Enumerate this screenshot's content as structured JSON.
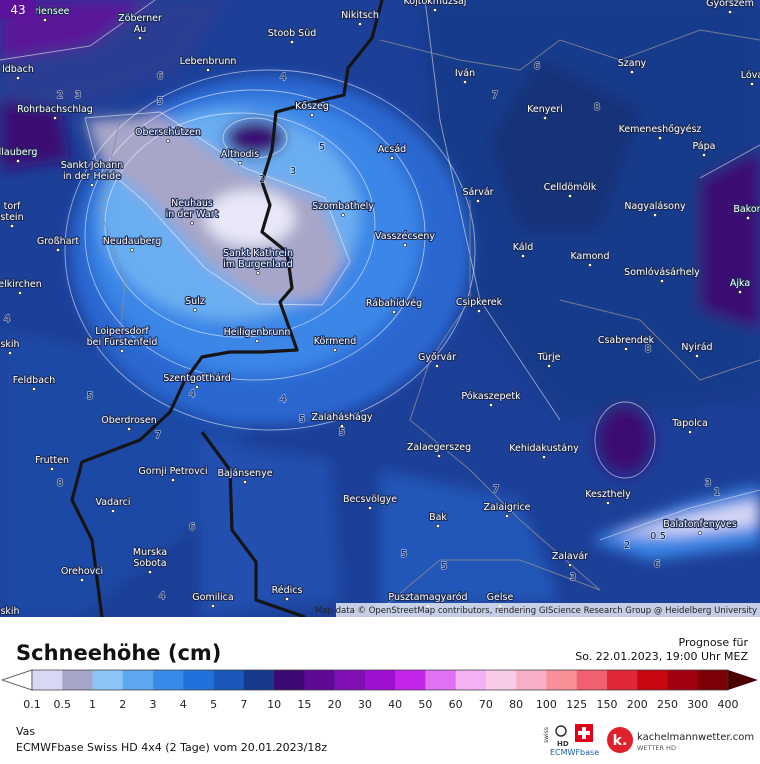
{
  "map": {
    "badge": "43",
    "places": [
      {
        "lines": [
          "Mariensee"
        ]
      },
      {
        "lines": [
          "Zöberner",
          "Au"
        ]
      },
      {
        "lines": [
          "Kojtokmuzsaj"
        ]
      },
      {
        "lines": [
          "Nikitsch"
        ]
      },
      {
        "lines": [
          "Győrszem"
        ]
      },
      {
        "lines": [
          "Stoob Süd"
        ]
      },
      {
        "lines": [
          "Lebenbrunn"
        ]
      },
      {
        "lines": [
          "Iván"
        ]
      },
      {
        "lines": [
          "Szany"
        ]
      },
      {
        "lines": [
          "Lóva"
        ]
      },
      {
        "lines": [
          "ldbach"
        ]
      },
      {
        "lines": [
          "Rohrbachschlag"
        ]
      },
      {
        "lines": [
          "Kőszeg"
        ]
      },
      {
        "lines": [
          "Kenyeri"
        ]
      },
      {
        "lines": [
          "Oberschützen"
        ]
      },
      {
        "lines": [
          "Kemeneshőgyész"
        ]
      },
      {
        "lines": [
          "llauberg"
        ]
      },
      {
        "lines": [
          "Althodis"
        ]
      },
      {
        "lines": [
          "Acsád"
        ]
      },
      {
        "lines": [
          "Pápa"
        ]
      },
      {
        "lines": [
          "Sankt Johann",
          "in der Heide"
        ]
      },
      {
        "lines": [
          "Sárvár"
        ]
      },
      {
        "lines": [
          "Celldömölk"
        ]
      },
      {
        "lines": [
          "Neuhaus",
          "in der Wart"
        ]
      },
      {
        "lines": [
          "Szombathely"
        ]
      },
      {
        "lines": [
          "Nagyalásony"
        ]
      },
      {
        "lines": [
          "Bakon"
        ]
      },
      {
        "lines": [
          "torf",
          "stein"
        ]
      },
      {
        "lines": [
          "Großhart"
        ]
      },
      {
        "lines": [
          "Neudauberg"
        ]
      },
      {
        "lines": [
          "Vasszécseny"
        ]
      },
      {
        "lines": [
          "Káld"
        ]
      },
      {
        "lines": [
          "Sankt Kathrein",
          "im Burgenland"
        ]
      },
      {
        "lines": [
          "Kamond"
        ]
      },
      {
        "lines": [
          "Somlóvásárhely"
        ]
      },
      {
        "lines": [
          "elkirchen"
        ]
      },
      {
        "lines": [
          "Ajka"
        ]
      },
      {
        "lines": [
          "Sulz"
        ]
      },
      {
        "lines": [
          "Rábahídvég"
        ]
      },
      {
        "lines": [
          "Csipkerek"
        ]
      },
      {
        "lines": [
          "Loipersdorf",
          "bei Fürstenfeld"
        ]
      },
      {
        "lines": [
          "Heiligenbrunn"
        ]
      },
      {
        "lines": [
          "Körmend"
        ]
      },
      {
        "lines": [
          "Csabrendek"
        ]
      },
      {
        "lines": [
          "Nyirád"
        ]
      },
      {
        "lines": [
          "skih"
        ]
      },
      {
        "lines": [
          "Feldbach"
        ]
      },
      {
        "lines": [
          "Szentgotthárd"
        ]
      },
      {
        "lines": [
          "Győrvár"
        ]
      },
      {
        "lines": [
          "Türje"
        ]
      },
      {
        "lines": [
          "Pókaszepetk"
        ]
      },
      {
        "lines": [
          "Oberdrosen"
        ]
      },
      {
        "lines": [
          "Zalaháshágy"
        ]
      },
      {
        "lines": [
          "Tapolca"
        ]
      },
      {
        "lines": [
          "Zalaegerszeg"
        ]
      },
      {
        "lines": [
          "Kehidakustány"
        ]
      },
      {
        "lines": [
          "Frutten"
        ]
      },
      {
        "lines": [
          "Gornji Petrovci"
        ]
      },
      {
        "lines": [
          "Bajánsenye"
        ]
      },
      {
        "lines": [
          "Keszthely"
        ]
      },
      {
        "lines": [
          "Vadarci"
        ]
      },
      {
        "lines": [
          "Becsvölgye"
        ]
      },
      {
        "lines": [
          "Zalaigrice"
        ]
      },
      {
        "lines": [
          "Balatonfenyves"
        ]
      },
      {
        "lines": [
          "Bak"
        ]
      },
      {
        "lines": [
          "Murska",
          "Sobota"
        ]
      },
      {
        "lines": [
          "Zalavár"
        ]
      },
      {
        "lines": [
          "Orehovci"
        ]
      },
      {
        "lines": [
          "Rédics"
        ]
      },
      {
        "lines": [
          "Pusztamagyaród"
        ]
      },
      {
        "lines": [
          "Gelse"
        ]
      },
      {
        "lines": [
          "Gomilica"
        ]
      },
      {
        "lines": [
          "skih"
        ]
      }
    ],
    "contour_labels": [
      "6",
      "2",
      "3",
      "5",
      "4",
      "6",
      "7",
      "8",
      "5",
      "2",
      "3",
      "4",
      "8",
      "5",
      "4",
      "4",
      "5",
      "5",
      "7",
      "8",
      "6",
      "7",
      "3",
      "1",
      "5",
      "5",
      "2",
      "0.5",
      "3",
      "6",
      "4"
    ],
    "attribution": "Map data © OpenStreetMap contributors, rendering GIScience Research Group @ Heidelberg University"
  },
  "legend": {
    "title": "Schneehöhe (cm)",
    "labels": [
      "0.1",
      "0.5",
      "1",
      "2",
      "3",
      "4",
      "5",
      "7",
      "10",
      "15",
      "20",
      "30",
      "40",
      "50",
      "60",
      "70",
      "80",
      "100",
      "125",
      "150",
      "200",
      "250",
      "300",
      "400"
    ],
    "colors": [
      "#d8d8f4",
      "#a8a6c8",
      "#8cc4f8",
      "#5ea8f2",
      "#3a8aea",
      "#2270dc",
      "#1a58ba",
      "#183a8c",
      "#3a0a72",
      "#5e0a94",
      "#7e10b4",
      "#a010d2",
      "#c224ea",
      "#e070f4",
      "#f2b2f4",
      "#f8cce8",
      "#f8b0c6",
      "#f89098",
      "#f06070",
      "#e02838",
      "#c80812",
      "#a00010",
      "#7c0008"
    ],
    "low_color": "#ffffff",
    "high_color": "#4a0000"
  },
  "header": {
    "forecast_label": "Prognose für",
    "forecast_time": "So. 22.01.2023, 19:00 Uhr MEZ"
  },
  "footer": {
    "region": "Vas",
    "model_info": "ECMWFbase Swiss HD 4x4 (2 Tage) vom 20.01.2023/18z",
    "logo_swiss": "swiss",
    "logo_hd": "HD",
    "logo_model": "ECMWFbase",
    "logo_k": "k.",
    "site": "kachelmannwetter.com",
    "site_sub": "WETTER HD"
  }
}
